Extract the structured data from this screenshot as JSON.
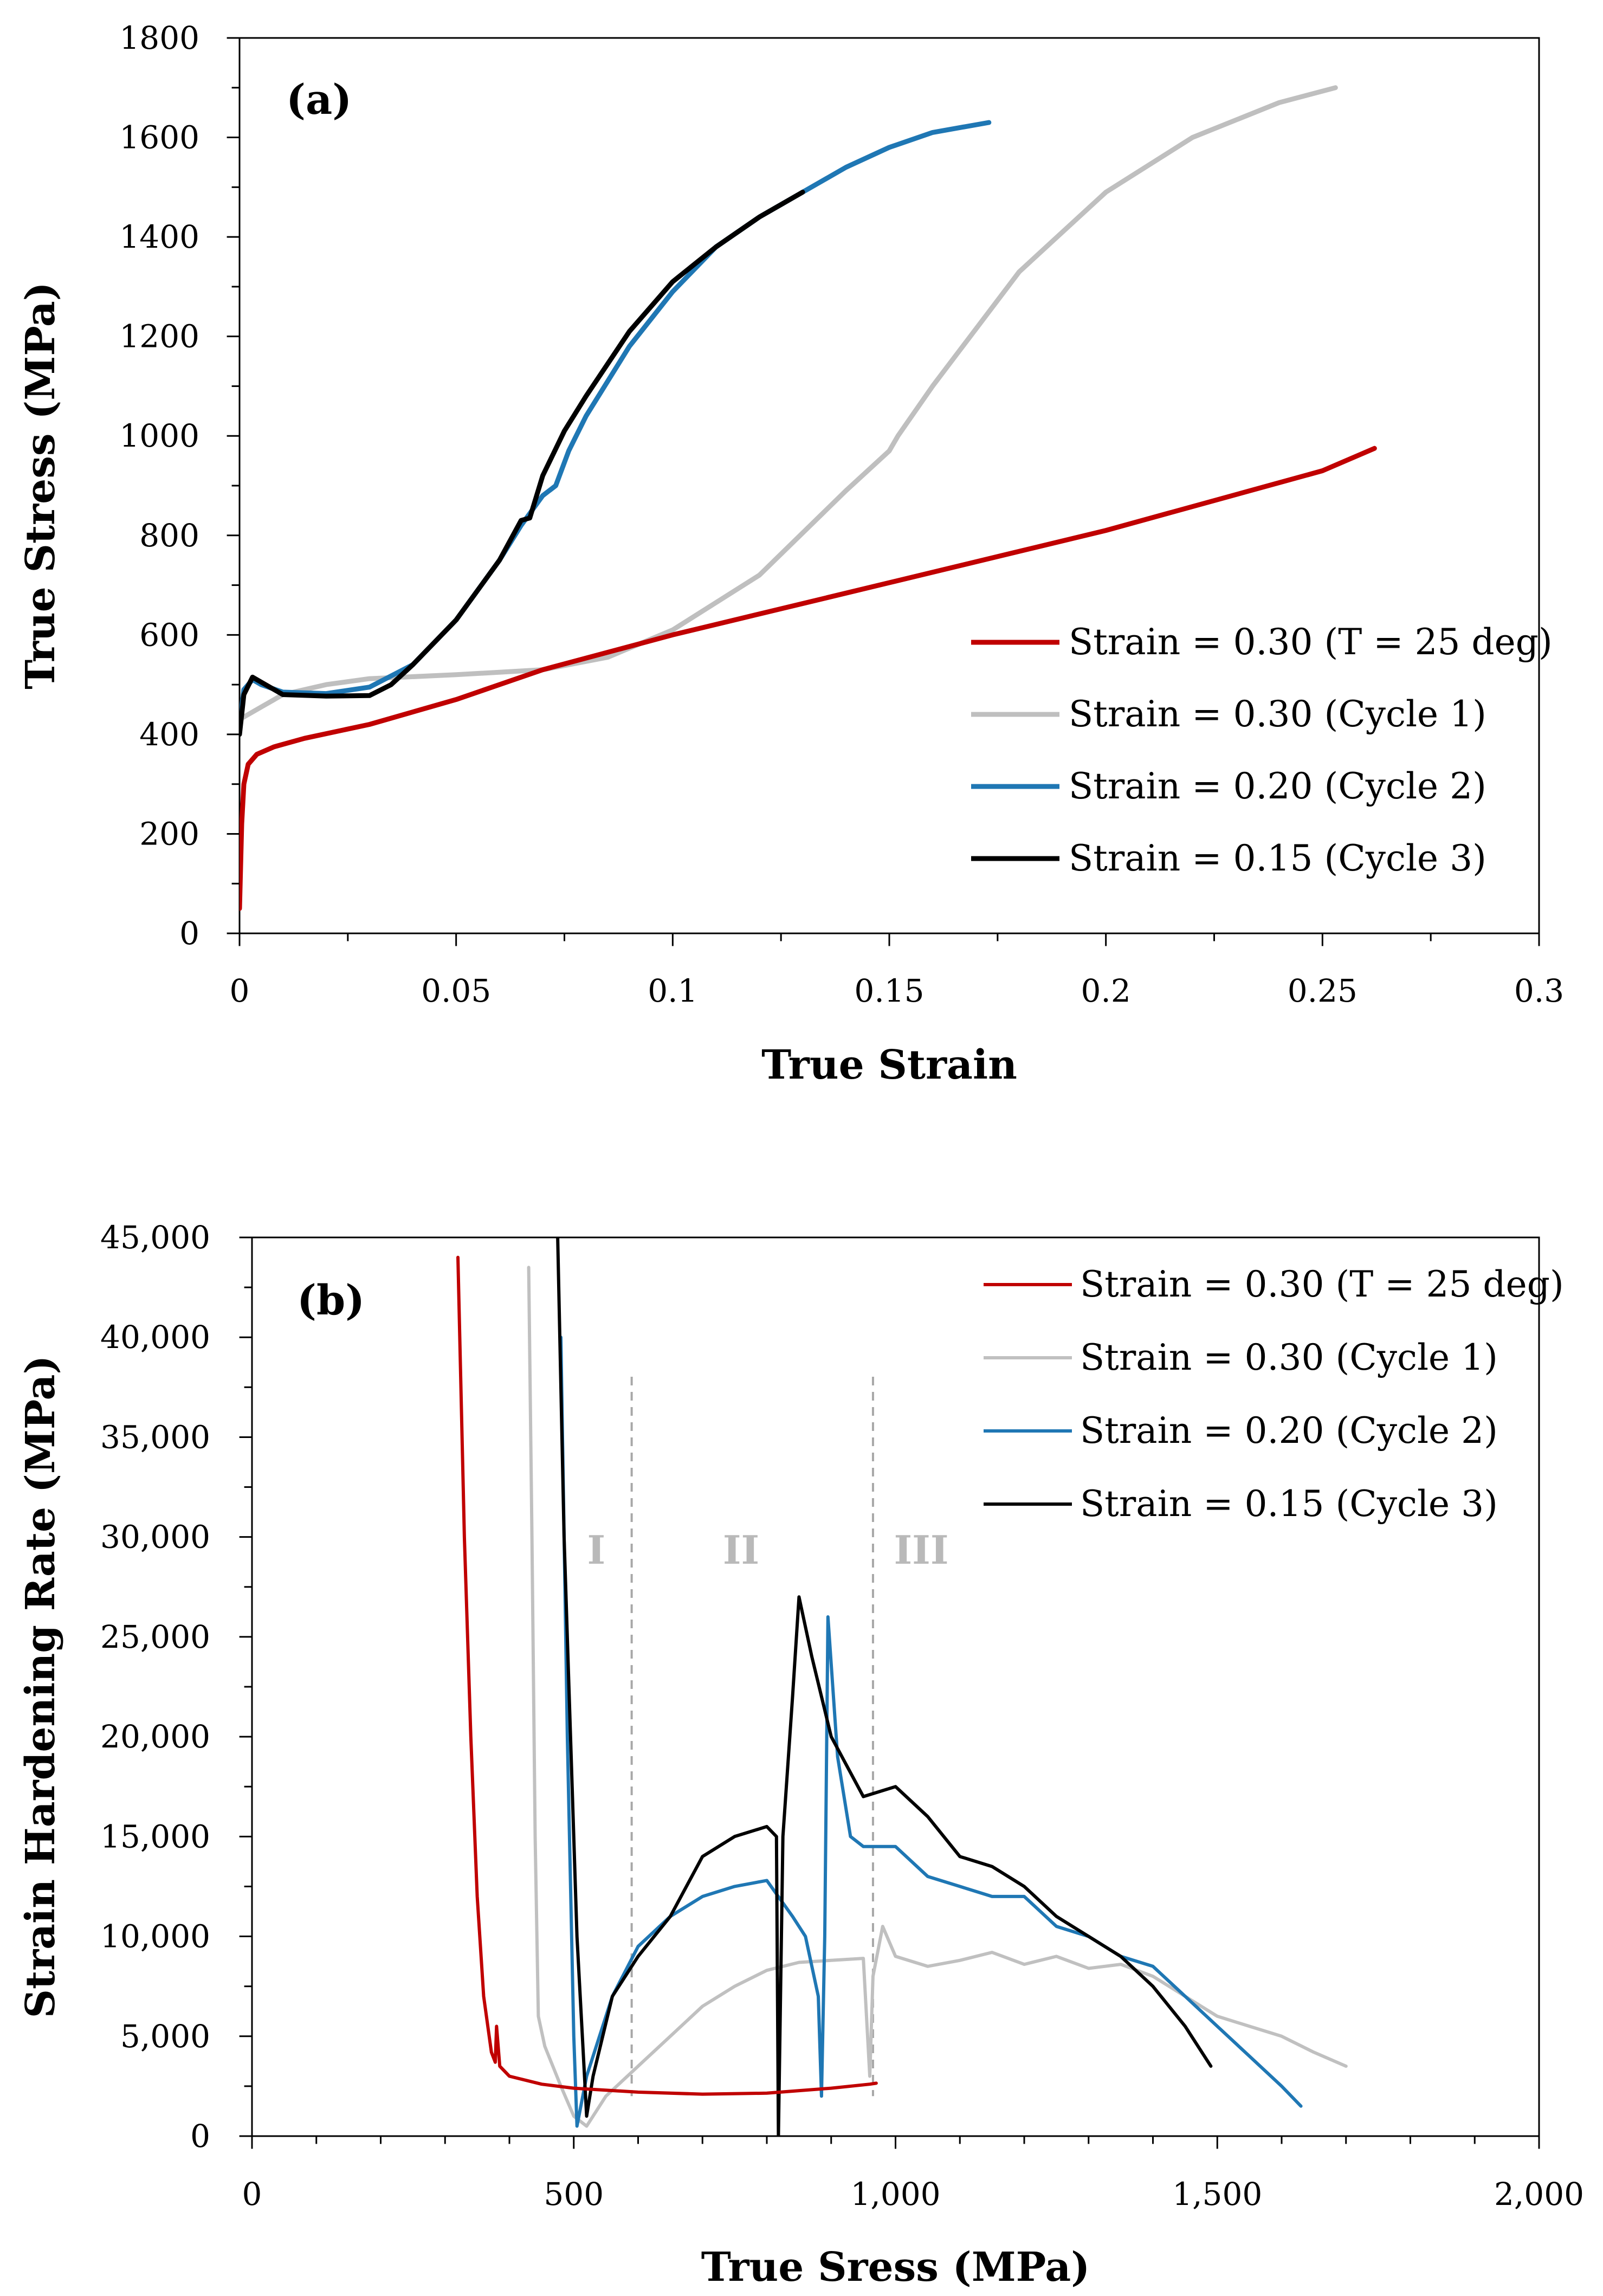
{
  "chart_data": [
    {
      "type": "line",
      "panel_label": "(a)",
      "xlabel": "True Strain",
      "ylabel": "True Stress (MPa)",
      "xlim": [
        0,
        0.3
      ],
      "ylim": [
        0,
        1800
      ],
      "x_ticks": [
        0,
        0.05,
        0.1,
        0.15,
        0.2,
        0.25,
        0.3
      ],
      "x_tick_labels": [
        "0",
        "0.05",
        "0.1",
        "0.15",
        "0.2",
        "0.25",
        "0.3"
      ],
      "y_ticks": [
        0,
        200,
        400,
        600,
        800,
        1000,
        1200,
        1400,
        1600,
        1800
      ],
      "y_tick_labels": [
        "0",
        "200",
        "400",
        "600",
        "800",
        "1000",
        "1200",
        "1400",
        "1600",
        "1800"
      ],
      "legend_position": "bottom-right",
      "series": [
        {
          "name": "Strain = 0.30 (T = 25 deg)",
          "color": "#c00000",
          "points": [
            [
              0,
              50
            ],
            [
              0.0005,
              220
            ],
            [
              0.001,
              300
            ],
            [
              0.002,
              340
            ],
            [
              0.004,
              360
            ],
            [
              0.008,
              375
            ],
            [
              0.015,
              392
            ],
            [
              0.03,
              420
            ],
            [
              0.05,
              470
            ],
            [
              0.07,
              530
            ],
            [
              0.1,
              600
            ],
            [
              0.15,
              705
            ],
            [
              0.2,
              810
            ],
            [
              0.25,
              930
            ],
            [
              0.262,
              975
            ]
          ]
        },
        {
          "name": "Strain = 0.30 (Cycle 1)",
          "color": "#bfbfbf",
          "points": [
            [
              0,
              430
            ],
            [
              0.005,
              455
            ],
            [
              0.01,
              480
            ],
            [
              0.02,
              500
            ],
            [
              0.03,
              512
            ],
            [
              0.05,
              520
            ],
            [
              0.07,
              530
            ],
            [
              0.085,
              555
            ],
            [
              0.1,
              610
            ],
            [
              0.12,
              720
            ],
            [
              0.14,
              890
            ],
            [
              0.15,
              970
            ],
            [
              0.152,
              1000
            ],
            [
              0.16,
              1100
            ],
            [
              0.18,
              1330
            ],
            [
              0.2,
              1490
            ],
            [
              0.22,
              1600
            ],
            [
              0.24,
              1670
            ],
            [
              0.253,
              1700
            ]
          ]
        },
        {
          "name": "Strain = 0.20 (Cycle 2)",
          "color": "#1f77b4",
          "points": [
            [
              0,
              420
            ],
            [
              0.001,
              490
            ],
            [
              0.003,
              510
            ],
            [
              0.005,
              500
            ],
            [
              0.01,
              485
            ],
            [
              0.02,
              482
            ],
            [
              0.03,
              495
            ],
            [
              0.04,
              540
            ],
            [
              0.05,
              630
            ],
            [
              0.06,
              750
            ],
            [
              0.065,
              820
            ],
            [
              0.07,
              880
            ],
            [
              0.073,
              900
            ],
            [
              0.076,
              970
            ],
            [
              0.08,
              1040
            ],
            [
              0.09,
              1180
            ],
            [
              0.1,
              1290
            ],
            [
              0.11,
              1380
            ],
            [
              0.12,
              1440
            ],
            [
              0.13,
              1490
            ],
            [
              0.14,
              1540
            ],
            [
              0.15,
              1580
            ],
            [
              0.16,
              1610
            ],
            [
              0.173,
              1630
            ]
          ]
        },
        {
          "name": "Strain = 0.15 (Cycle 3)",
          "color": "#000000",
          "points": [
            [
              0,
              400
            ],
            [
              0.001,
              480
            ],
            [
              0.003,
              515
            ],
            [
              0.005,
              505
            ],
            [
              0.01,
              480
            ],
            [
              0.02,
              477
            ],
            [
              0.03,
              478
            ],
            [
              0.035,
              500
            ],
            [
              0.04,
              540
            ],
            [
              0.05,
              630
            ],
            [
              0.06,
              750
            ],
            [
              0.065,
              830
            ],
            [
              0.067,
              835
            ],
            [
              0.07,
              920
            ],
            [
              0.075,
              1010
            ],
            [
              0.08,
              1080
            ],
            [
              0.09,
              1210
            ],
            [
              0.1,
              1310
            ],
            [
              0.11,
              1380
            ],
            [
              0.12,
              1440
            ],
            [
              0.13,
              1490
            ]
          ]
        }
      ]
    },
    {
      "type": "line",
      "panel_label": "(b)",
      "xlabel": "True Sress (MPa)",
      "ylabel": "Strain  Hardening Rate (MPa)",
      "xlim": [
        0,
        2000
      ],
      "ylim": [
        0,
        45000
      ],
      "x_ticks": [
        0,
        500,
        1000,
        1500,
        2000
      ],
      "x_tick_labels": [
        "0",
        "500",
        "1,000",
        "1,500",
        "2,000"
      ],
      "y_ticks": [
        0,
        5000,
        10000,
        15000,
        20000,
        25000,
        30000,
        35000,
        40000,
        45000
      ],
      "y_tick_labels": [
        "0",
        "5,000",
        "10,000",
        "15,000",
        "20,000",
        "25,000",
        "30,000",
        "35,000",
        "40,000",
        "45,000"
      ],
      "legend_position": "top-right",
      "regions": [
        {
          "label": "I",
          "x": 535
        },
        {
          "label": "II",
          "x": 760
        },
        {
          "label": "III",
          "x": 1040
        }
      ],
      "region_boundaries": [
        590,
        965
      ],
      "series": [
        {
          "name": "Strain = 0.30 (T = 25 deg)",
          "color": "#c00000",
          "points": [
            [
              320,
              44000
            ],
            [
              330,
              30000
            ],
            [
              340,
              20000
            ],
            [
              350,
              12000
            ],
            [
              360,
              7000
            ],
            [
              372,
              4200
            ],
            [
              378,
              3700
            ],
            [
              380,
              5500
            ],
            [
              385,
              3500
            ],
            [
              400,
              3000
            ],
            [
              450,
              2600
            ],
            [
              500,
              2400
            ],
            [
              600,
              2200
            ],
            [
              700,
              2100
            ],
            [
              800,
              2150
            ],
            [
              900,
              2400
            ],
            [
              960,
              2600
            ],
            [
              970,
              2650
            ]
          ]
        },
        {
          "name": "Strain = 0.30 (Cycle 1)",
          "color": "#c0c0c0",
          "points": [
            [
              430,
              43500
            ],
            [
              435,
              30000
            ],
            [
              440,
              15000
            ],
            [
              445,
              6000
            ],
            [
              455,
              4500
            ],
            [
              480,
              2500
            ],
            [
              500,
              1000
            ],
            [
              520,
              500
            ],
            [
              550,
              2000
            ],
            [
              600,
              3500
            ],
            [
              650,
              5000
            ],
            [
              700,
              6500
            ],
            [
              750,
              7500
            ],
            [
              800,
              8300
            ],
            [
              850,
              8700
            ],
            [
              900,
              8800
            ],
            [
              950,
              8900
            ],
            [
              960,
              3000
            ],
            [
              965,
              8000
            ],
            [
              980,
              10500
            ],
            [
              1000,
              9000
            ],
            [
              1050,
              8500
            ],
            [
              1100,
              8800
            ],
            [
              1150,
              9200
            ],
            [
              1200,
              8600
            ],
            [
              1250,
              9000
            ],
            [
              1300,
              8400
            ],
            [
              1350,
              8600
            ],
            [
              1400,
              8000
            ],
            [
              1450,
              7000
            ],
            [
              1500,
              6000
            ],
            [
              1550,
              5500
            ],
            [
              1600,
              5000
            ],
            [
              1650,
              4200
            ],
            [
              1700,
              3500
            ]
          ]
        },
        {
          "name": "Strain = 0.20 (Cycle 2)",
          "color": "#1f77b4",
          "points": [
            [
              480,
              40000
            ],
            [
              490,
              20000
            ],
            [
              500,
              5000
            ],
            [
              505,
              500
            ],
            [
              520,
              3000
            ],
            [
              560,
              7000
            ],
            [
              600,
              9500
            ],
            [
              650,
              11000
            ],
            [
              700,
              12000
            ],
            [
              750,
              12500
            ],
            [
              800,
              12800
            ],
            [
              840,
              11000
            ],
            [
              860,
              10000
            ],
            [
              880,
              7000
            ],
            [
              885,
              2000
            ],
            [
              890,
              10000
            ],
            [
              895,
              26000
            ],
            [
              910,
              19000
            ],
            [
              930,
              15000
            ],
            [
              950,
              14500
            ],
            [
              1000,
              14500
            ],
            [
              1050,
              13000
            ],
            [
              1100,
              12500
            ],
            [
              1150,
              12000
            ],
            [
              1200,
              12000
            ],
            [
              1250,
              10500
            ],
            [
              1300,
              10000
            ],
            [
              1350,
              9000
            ],
            [
              1400,
              8500
            ],
            [
              1450,
              7000
            ],
            [
              1500,
              5500
            ],
            [
              1550,
              4000
            ],
            [
              1600,
              2500
            ],
            [
              1630,
              1500
            ]
          ]
        },
        {
          "name": "Strain = 0.15 (Cycle 3)",
          "color": "#000000",
          "points": [
            [
              475,
              45000
            ],
            [
              485,
              30000
            ],
            [
              495,
              20000
            ],
            [
              505,
              10000
            ],
            [
              515,
              4000
            ],
            [
              520,
              1000
            ],
            [
              530,
              3000
            ],
            [
              560,
              7000
            ],
            [
              600,
              9000
            ],
            [
              650,
              11000
            ],
            [
              700,
              14000
            ],
            [
              750,
              15000
            ],
            [
              800,
              15500
            ],
            [
              815,
              15000
            ],
            [
              818,
              0
            ],
            [
              825,
              15000
            ],
            [
              840,
              22000
            ],
            [
              850,
              27000
            ],
            [
              870,
              24000
            ],
            [
              900,
              20000
            ],
            [
              950,
              17000
            ],
            [
              1000,
              17500
            ],
            [
              1050,
              16000
            ],
            [
              1100,
              14000
            ],
            [
              1150,
              13500
            ],
            [
              1200,
              12500
            ],
            [
              1250,
              11000
            ],
            [
              1300,
              10000
            ],
            [
              1350,
              9000
            ],
            [
              1400,
              7500
            ],
            [
              1450,
              5500
            ],
            [
              1490,
              3500
            ]
          ]
        }
      ]
    }
  ]
}
